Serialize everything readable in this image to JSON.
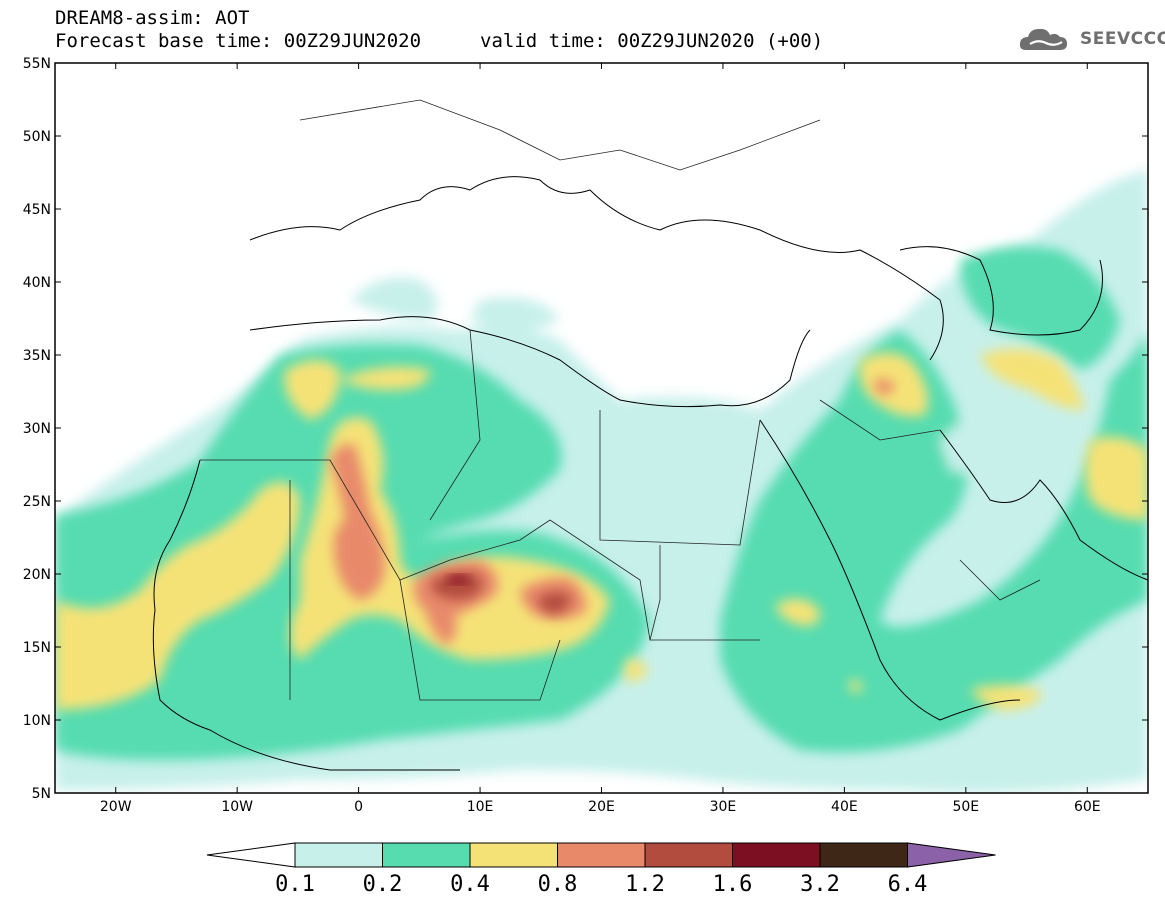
{
  "header": {
    "title": "DREAM8-assim: AOT",
    "base_time": "Forecast base time: 00Z29JUN2020",
    "valid_time": "valid time: 00Z29JUN2020 (+00)"
  },
  "logo": {
    "text": "SEEVCCC",
    "icon": "cloud-icon"
  },
  "map": {
    "lat_labels": [
      "55N",
      "50N",
      "45N",
      "40N",
      "35N",
      "30N",
      "25N",
      "20N",
      "15N",
      "10N",
      "5N"
    ],
    "lon_labels": [
      "20W",
      "10W",
      "0",
      "10E",
      "20E",
      "30E",
      "40E",
      "50E",
      "60E"
    ],
    "lat_range": [
      5,
      55
    ],
    "lon_range": [
      -25,
      65
    ]
  },
  "colorbar": {
    "levels": [
      "0.1",
      "0.2",
      "0.4",
      "0.8",
      "1.2",
      "1.6",
      "3.2",
      "6.4"
    ],
    "colors": [
      "#c7f0ea",
      "#57dcb0",
      "#f5e277",
      "#e8896a",
      "#b14c3e",
      "#7c0f22",
      "#3e2716",
      "#8b62a8"
    ],
    "left_arrow_color": "#ffffff"
  }
}
